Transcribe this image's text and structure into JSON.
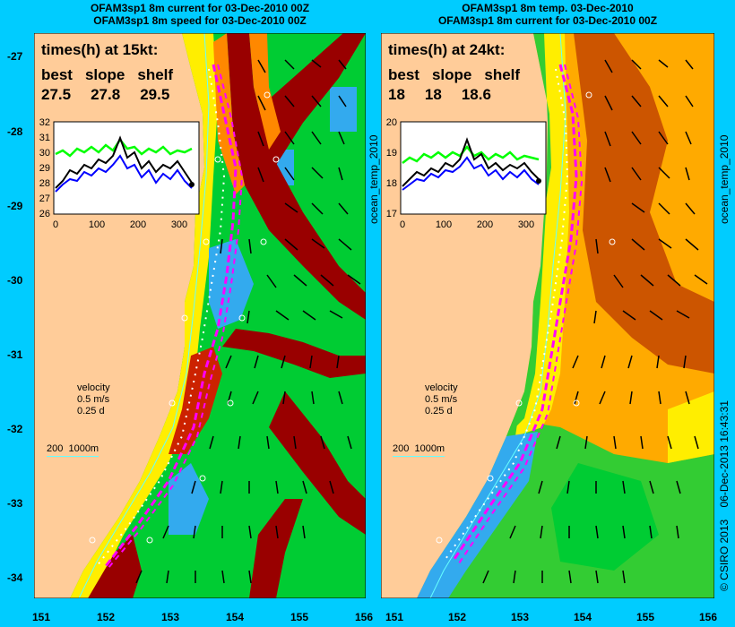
{
  "left_panel": {
    "title_line1": "OFAM3sp1 8m current for 03-Dec-2010 00Z",
    "title_line2": "OFAM3sp1 8m speed for 03-Dec-2010 00Z",
    "times_header": "times(h) at 15kt:",
    "col_labels": [
      "best",
      "slope",
      "shelf"
    ],
    "col_values": [
      "27.5",
      "27.8",
      "29.5"
    ],
    "inset_yticks": [
      "32",
      "31",
      "30",
      "29",
      "28",
      "27",
      "26"
    ],
    "inset_xticks": [
      "0",
      "100",
      "200",
      "300"
    ],
    "side_label": "ocean_temp_2010",
    "velocity_label": "velocity",
    "velocity_speed": "0.5 m/s",
    "velocity_days": "0.25 d",
    "depth_label": "200  1000m"
  },
  "right_panel": {
    "title_line1": "OFAM3sp1 8m temp. 03-Dec-2010",
    "title_line2": "OFAM3sp1 8m current for 03-Dec-2010 00Z",
    "times_header": "times(h) at 24kt:",
    "col_labels": [
      "best",
      "slope",
      "shelf"
    ],
    "col_values": [
      "18",
      "18",
      "18.6"
    ],
    "inset_yticks": [
      "20",
      "19",
      "18",
      "17"
    ],
    "inset_xticks": [
      "0",
      "100",
      "200",
      "300"
    ],
    "side_label": "ocean_temp_2010",
    "velocity_label": "velocity",
    "velocity_speed": "0.5 m/s",
    "velocity_days": "0.25 d",
    "depth_label": "200  1000m"
  },
  "axes": {
    "lat_ticks": [
      "-27",
      "-28",
      "-29",
      "-30",
      "-31",
      "-32",
      "-33",
      "-34"
    ],
    "lon_ticks": [
      "151",
      "152",
      "153",
      "154",
      "155",
      "156"
    ]
  },
  "credit": "© CSIRO 2013    06-Dec-2013 16:43:31",
  "colors": {
    "background": "#00ccff",
    "land": "#ffcc99",
    "route": "#ff00ff",
    "speed_max": "#990000",
    "temp_warm": "#cc5500",
    "temp_cool": "#33aaee"
  }
}
